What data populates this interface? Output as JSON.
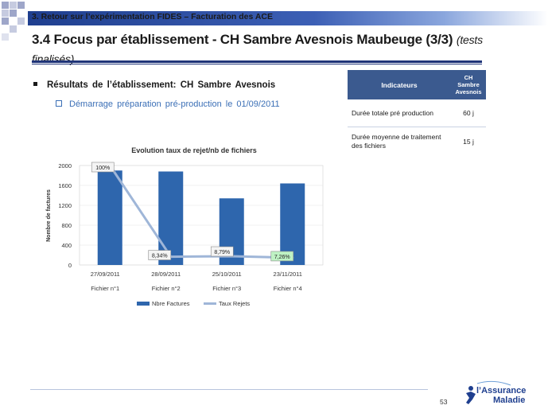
{
  "header": {
    "section_label": "3. Retour sur l’expérimentation FIDES – Facturation des ACE",
    "title_main": "3.4 Focus par établissement - CH Sambre Avesnois Maubeuge (3/3)",
    "title_sub": "(tests finalisés)"
  },
  "body": {
    "bullet1": "Résultats de l’établissement: CH Sambre Avesnois",
    "bullet2": "Démarrage préparation pré-production le 01/09/2011"
  },
  "indicators_table": {
    "header_col1": "Indicateurs",
    "header_col2": "CH Sambre Avesnois",
    "rows": [
      {
        "label": "Durée totale pré production",
        "value": "60 j"
      },
      {
        "label": "Durée moyenne de traitement des fichiers",
        "value": "15 j"
      }
    ]
  },
  "chart_data": {
    "type": "bar",
    "title": "Evolution taux de rejet/nb de fichiers",
    "ylabel": "Nombre de factures",
    "xlabel": "",
    "ylim": [
      0,
      2000
    ],
    "yticks": [
      0,
      400,
      800,
      1200,
      1600,
      2000
    ],
    "categories": [
      "27/09/2011",
      "28/09/2011",
      "25/10/2011",
      "23/11/2011"
    ],
    "category_sublabels": [
      "Fichier n°1",
      "Fichier n°2",
      "Fichier n°3",
      "Fichier n°4"
    ],
    "series": [
      {
        "name": "Nbre Factures",
        "type": "bar",
        "color": "#2e66ad",
        "values": [
          1900,
          1880,
          1340,
          1640
        ]
      },
      {
        "name": "Taux Rejets",
        "type": "line",
        "color": "#9fb6d8",
        "values": [
          100,
          8.34,
          8.79,
          7.26
        ],
        "unit": "%"
      }
    ],
    "data_labels": [
      "100%",
      "8,34%",
      "8,79%",
      "7,26%"
    ],
    "secondary_ylim": [
      0,
      100
    ],
    "legend_position": "bottom"
  },
  "footer": {
    "page_number": "53",
    "logo_line1": "l’Assurance",
    "logo_line2": "Maladie"
  },
  "colors": {
    "accent": "#1f3478",
    "table_header": "#3b5a8f",
    "link_blue": "#3b6fb6"
  }
}
